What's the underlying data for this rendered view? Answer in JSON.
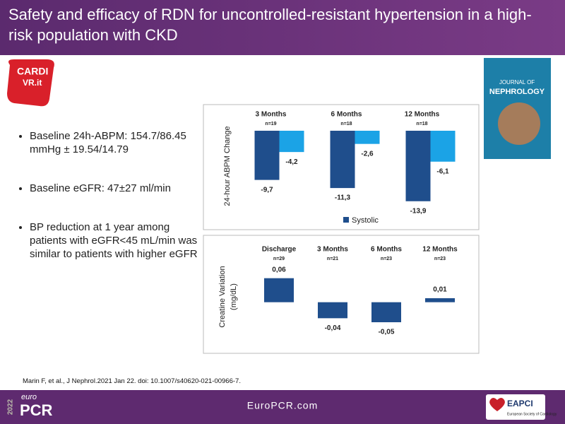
{
  "header": {
    "title": "Safety and efficacy of RDN for uncontrolled-resistant hypertension in a high-risk population with CKD"
  },
  "logo": {
    "line1": "CARDI",
    "line2": "VR.it"
  },
  "journal": {
    "line1": "JOURNAL OF",
    "line2": "NEPHROLOGY"
  },
  "bullets": [
    "Baseline 24h-ABPM: 154.7/86.45 mmHg ± 19.54/14.79",
    "Baseline eGFR: 47±27 ml/min",
    "BP reduction at 1 year among patients with eGFR<45 mL/min was similar to patients with higher eGFR"
  ],
  "citation": "Marin F, et al., J Nephrol.2021 Jan 22. doi: 10.1007/s40620-021-00966-7.",
  "footer": {
    "year": "2022",
    "brand_top": "euro",
    "brand": "PCR",
    "url": "EuroPCR.com",
    "partner": "EAPCI",
    "partner_sub": "European Society of Cardiology"
  },
  "chart_data": [
    {
      "type": "bar",
      "y_label": [
        "24-hour ABPM  Change"
      ],
      "categories": [
        "3 Months",
        "6 Months",
        "12 Months"
      ],
      "n_labels": [
        "n=19",
        "n=18",
        "n=18"
      ],
      "ylim": [
        -17,
        0
      ],
      "series": [
        {
          "name": "Systolic",
          "color": "#1f4e8c",
          "values": [
            -9.7,
            -11.3,
            -13.9
          ],
          "value_labels": [
            "-9,7",
            "-11,3",
            "-13,9"
          ]
        },
        {
          "color": "#1ba3e6",
          "values": [
            -4.2,
            -2.6,
            -6.1
          ],
          "value_labels": [
            "-4,2",
            "-2,6",
            "-6,1"
          ]
        }
      ]
    },
    {
      "type": "bar",
      "y_label": [
        "Creatine Variation",
        "(mg/dL)"
      ],
      "categories": [
        "Discharge",
        "3 Months",
        "6 Months",
        "12 Months"
      ],
      "n_labels": [
        "n=29",
        "n=21",
        "n=23",
        "n=23"
      ],
      "ylim": [
        -0.08,
        0.1
      ],
      "color": "#1f4e8c",
      "values": [
        0.06,
        -0.04,
        -0.05,
        0.01
      ],
      "value_labels": [
        "0,06",
        "-0,04",
        "-0,05",
        "0,01"
      ]
    }
  ]
}
